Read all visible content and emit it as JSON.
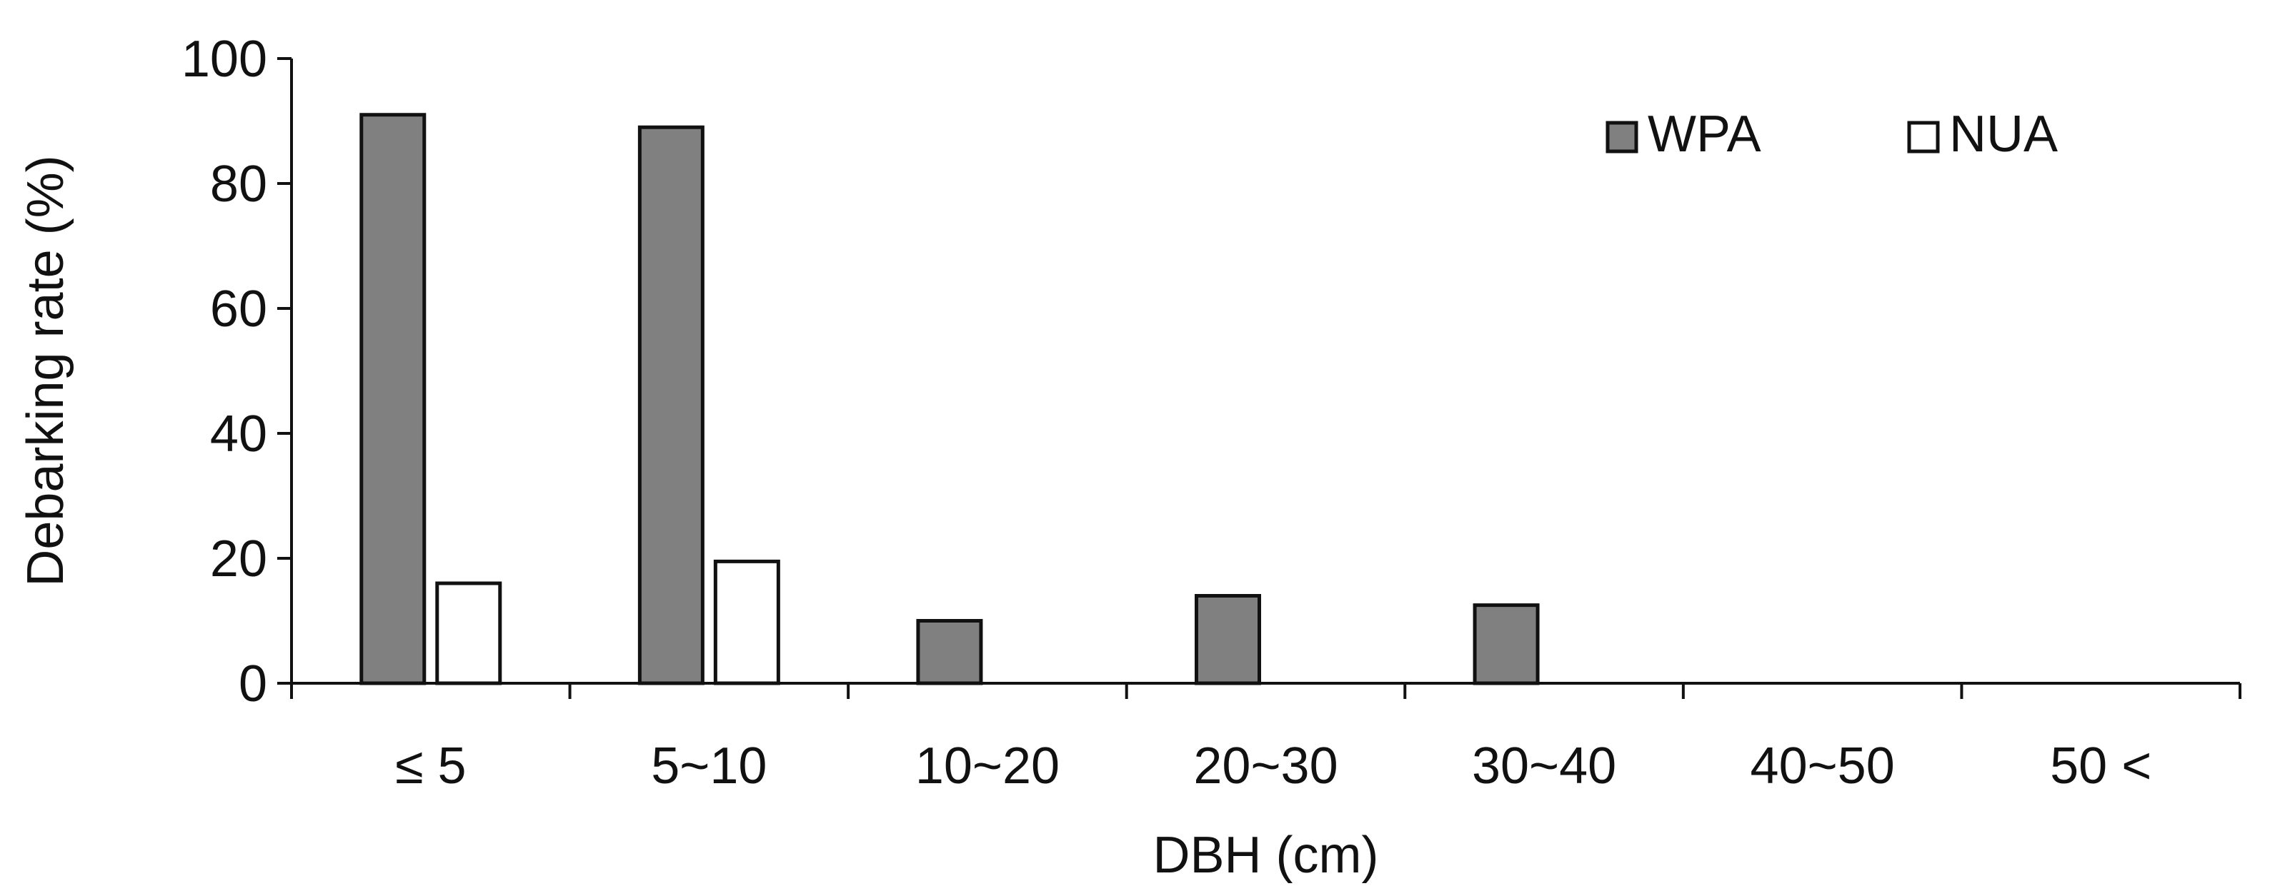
{
  "chart_data": {
    "type": "bar",
    "title": "",
    "xlabel": "DBH (cm)",
    "ylabel": "Debarking rate (%)",
    "ylim": [
      0,
      100
    ],
    "yticks": [
      "0",
      "20",
      "40",
      "60",
      "80",
      "100"
    ],
    "categories": [
      "≤ 5",
      "5~10",
      "10~20",
      "20~30",
      "30~40",
      "40~50",
      "50 <"
    ],
    "series": [
      {
        "name": "WPA",
        "values": [
          91,
          89,
          10,
          14,
          12.5,
          0,
          0
        ],
        "color": "#808080"
      },
      {
        "name": "NUA",
        "values": [
          16,
          19.5,
          0,
          0,
          0,
          0,
          0
        ],
        "color": "#ffffff"
      }
    ],
    "grid": false,
    "legend": "top-right"
  }
}
